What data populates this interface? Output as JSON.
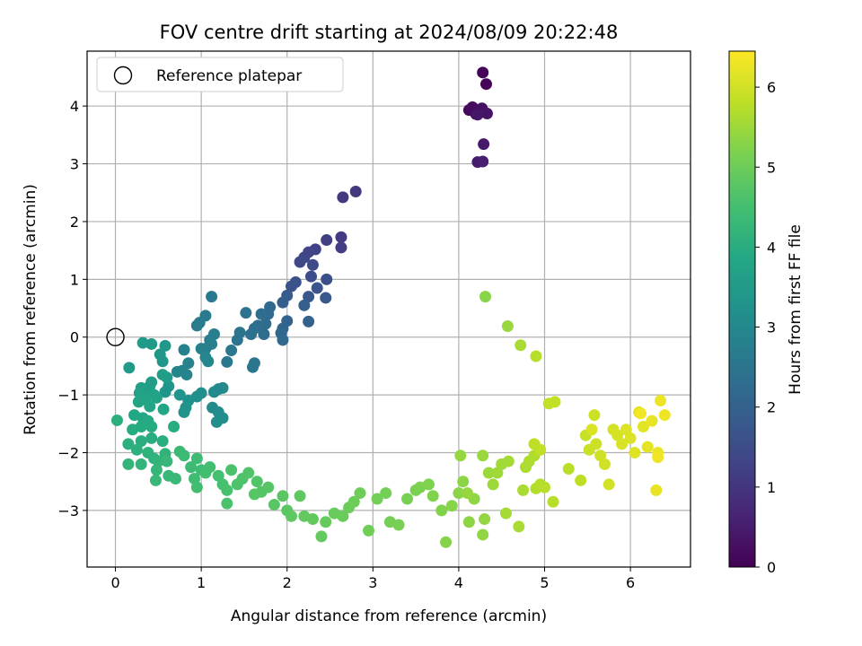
{
  "chart_data": {
    "type": "scatter",
    "title": "FOV centre drift starting at 2024/08/09 20:22:48",
    "xlabel": "Angular distance from reference (arcmin)",
    "ylabel": "Rotation from reference (arcmin)",
    "xlim": [
      -0.33,
      6.7
    ],
    "ylim": [
      -3.98,
      4.95
    ],
    "xticks": [
      0,
      1,
      2,
      3,
      4,
      5,
      6
    ],
    "yticks": [
      -3,
      -2,
      -1,
      0,
      1,
      2,
      3,
      4
    ],
    "grid": true,
    "legend": {
      "placement": "upper-left",
      "entries": [
        {
          "label": "Reference platepar",
          "marker": "hollow-circle"
        }
      ]
    },
    "reference_point": {
      "x": 0,
      "y": 0
    },
    "colorbar": {
      "label": "Hours from first FF file",
      "colormap": "viridis",
      "range": [
        0,
        6.45
      ],
      "ticks": [
        0,
        1,
        2,
        3,
        4,
        5,
        6
      ]
    },
    "points": [
      [
        4.28,
        4.58,
        0.05
      ],
      [
        4.32,
        4.38,
        0.1
      ],
      [
        4.12,
        3.93,
        0.15
      ],
      [
        4.16,
        3.98,
        0.2
      ],
      [
        4.2,
        3.86,
        0.25
      ],
      [
        4.27,
        3.96,
        0.3
      ],
      [
        4.33,
        3.87,
        0.35
      ],
      [
        4.22,
        3.85,
        0.4
      ],
      [
        4.29,
        3.34,
        0.45
      ],
      [
        4.22,
        3.03,
        0.5
      ],
      [
        4.28,
        3.04,
        0.55
      ],
      [
        2.8,
        2.52,
        1.0
      ],
      [
        2.65,
        2.42,
        1.05
      ],
      [
        2.63,
        1.73,
        1.1
      ],
      [
        2.63,
        1.55,
        1.15
      ],
      [
        2.46,
        1.68,
        1.2
      ],
      [
        2.33,
        1.52,
        1.25
      ],
      [
        2.25,
        1.47,
        1.3
      ],
      [
        2.2,
        1.38,
        1.35
      ],
      [
        2.15,
        1.3,
        1.4
      ],
      [
        2.3,
        1.25,
        1.45
      ],
      [
        2.28,
        1.05,
        1.5
      ],
      [
        2.46,
        1.0,
        1.55
      ],
      [
        2.1,
        0.95,
        1.6
      ],
      [
        2.05,
        0.88,
        1.65
      ],
      [
        2.35,
        0.85,
        1.7
      ],
      [
        2.25,
        0.7,
        1.75
      ],
      [
        2.45,
        0.68,
        1.8
      ],
      [
        2.0,
        0.72,
        1.85
      ],
      [
        1.95,
        0.6,
        1.9
      ],
      [
        2.2,
        0.55,
        1.95
      ],
      [
        2.25,
        0.27,
        2.0
      ],
      [
        2.0,
        0.28,
        2.05
      ],
      [
        1.95,
        0.15,
        2.1
      ],
      [
        1.93,
        0.07,
        2.15
      ],
      [
        1.95,
        -0.05,
        2.2
      ],
      [
        1.8,
        0.52,
        2.22
      ],
      [
        1.78,
        0.4,
        2.25
      ],
      [
        1.75,
        0.23,
        2.27
      ],
      [
        1.73,
        0.05,
        2.3
      ],
      [
        1.7,
        0.4,
        2.32
      ],
      [
        1.66,
        0.2,
        2.35
      ],
      [
        1.62,
        0.15,
        2.37
      ],
      [
        1.58,
        0.05,
        2.4
      ],
      [
        1.52,
        0.42,
        2.42
      ],
      [
        1.45,
        0.08,
        2.45
      ],
      [
        1.42,
        -0.05,
        2.47
      ],
      [
        1.62,
        -0.45,
        2.5
      ],
      [
        1.6,
        -0.52,
        2.52
      ],
      [
        1.35,
        -0.23,
        2.55
      ],
      [
        1.3,
        -0.43,
        2.57
      ],
      [
        1.12,
        0.7,
        2.6
      ],
      [
        1.05,
        0.37,
        2.62
      ],
      [
        0.98,
        0.25,
        2.65
      ],
      [
        0.95,
        0.2,
        2.67
      ],
      [
        1.15,
        0.05,
        2.7
      ],
      [
        1.1,
        -0.05,
        2.72
      ],
      [
        1.12,
        -0.12,
        2.75
      ],
      [
        1.05,
        -0.2,
        2.77
      ],
      [
        1.0,
        -0.2,
        2.8
      ],
      [
        0.8,
        -0.22,
        2.82
      ],
      [
        0.85,
        -0.45,
        2.85
      ],
      [
        0.78,
        -0.58,
        2.87
      ],
      [
        0.83,
        -0.65,
        2.9
      ],
      [
        0.72,
        -0.6,
        2.92
      ],
      [
        1.05,
        -0.35,
        2.95
      ],
      [
        1.08,
        -0.42,
        2.97
      ],
      [
        1.2,
        -0.9,
        3.0
      ],
      [
        1.25,
        -0.88,
        3.02
      ],
      [
        1.15,
        -0.95,
        3.05
      ],
      [
        1.13,
        -1.22,
        3.07
      ],
      [
        1.2,
        -1.3,
        3.1
      ],
      [
        1.25,
        -1.4,
        3.12
      ],
      [
        1.18,
        -1.47,
        3.15
      ],
      [
        1.0,
        -0.97,
        3.17
      ],
      [
        0.95,
        -1.03,
        3.2
      ],
      [
        0.85,
        -1.1,
        3.22
      ],
      [
        0.82,
        -1.22,
        3.25
      ],
      [
        0.8,
        -1.3,
        3.27
      ],
      [
        0.75,
        -1.0,
        3.3
      ],
      [
        0.62,
        -0.85,
        3.32
      ],
      [
        0.58,
        -0.95,
        3.35
      ],
      [
        0.55,
        -0.42,
        3.37
      ],
      [
        0.52,
        -0.3,
        3.4
      ],
      [
        0.58,
        -0.15,
        3.42
      ],
      [
        0.42,
        -0.12,
        3.45
      ],
      [
        0.32,
        -0.1,
        3.47
      ],
      [
        0.16,
        -0.53,
        3.5
      ],
      [
        0.6,
        -0.7,
        3.52
      ],
      [
        0.55,
        -0.65,
        3.55
      ],
      [
        0.42,
        -0.78,
        3.57
      ],
      [
        0.4,
        -0.85,
        3.6
      ],
      [
        0.3,
        -0.88,
        3.62
      ],
      [
        0.35,
        -0.93,
        3.65
      ],
      [
        0.28,
        -0.97,
        3.67
      ],
      [
        0.45,
        -1.0,
        3.7
      ],
      [
        0.48,
        -1.05,
        3.72
      ],
      [
        0.35,
        -1.08,
        3.75
      ],
      [
        0.27,
        -1.12,
        3.77
      ],
      [
        0.4,
        -1.2,
        3.8
      ],
      [
        0.56,
        -1.25,
        3.82
      ],
      [
        0.22,
        -1.35,
        3.85
      ],
      [
        0.32,
        -1.4,
        3.87
      ],
      [
        0.38,
        -1.45,
        3.9
      ],
      [
        0.42,
        -1.55,
        3.92
      ],
      [
        0.3,
        -1.55,
        3.94
      ],
      [
        0.2,
        -1.6,
        3.96
      ],
      [
        0.68,
        -1.55,
        3.98
      ],
      [
        0.42,
        -1.75,
        4.0
      ],
      [
        0.55,
        -1.8,
        4.02
      ],
      [
        0.3,
        -1.8,
        4.04
      ],
      [
        0.15,
        -1.85,
        4.06
      ],
      [
        0.02,
        -1.44,
        4.08
      ],
      [
        0.25,
        -1.95,
        4.1
      ],
      [
        0.38,
        -2.0,
        4.12
      ],
      [
        0.45,
        -2.1,
        4.14
      ],
      [
        0.58,
        -2.02,
        4.16
      ],
      [
        0.5,
        -2.15,
        4.18
      ],
      [
        0.3,
        -2.2,
        4.2
      ],
      [
        0.15,
        -2.2,
        4.22
      ],
      [
        0.48,
        -2.3,
        4.24
      ],
      [
        0.6,
        -2.15,
        4.26
      ],
      [
        0.47,
        -2.48,
        4.28
      ],
      [
        0.62,
        -2.4,
        4.3
      ],
      [
        0.7,
        -2.45,
        4.32
      ],
      [
        0.75,
        -1.98,
        4.34
      ],
      [
        0.8,
        -2.05,
        4.36
      ],
      [
        0.88,
        -2.25,
        4.38
      ],
      [
        0.95,
        -2.1,
        4.4
      ],
      [
        1.0,
        -2.3,
        4.42
      ],
      [
        0.92,
        -2.45,
        4.44
      ],
      [
        0.95,
        -2.6,
        4.46
      ],
      [
        1.05,
        -2.35,
        4.48
      ],
      [
        1.1,
        -2.25,
        4.5
      ],
      [
        1.2,
        -2.4,
        4.52
      ],
      [
        1.25,
        -2.55,
        4.54
      ],
      [
        1.3,
        -2.65,
        4.56
      ],
      [
        1.3,
        -2.88,
        4.58
      ],
      [
        1.35,
        -2.3,
        4.6
      ],
      [
        1.42,
        -2.55,
        4.62
      ],
      [
        1.48,
        -2.45,
        4.64
      ],
      [
        1.55,
        -2.35,
        4.66
      ],
      [
        1.65,
        -2.5,
        4.68
      ],
      [
        1.7,
        -2.68,
        4.7
      ],
      [
        1.62,
        -2.72,
        4.72
      ],
      [
        1.78,
        -2.6,
        4.74
      ],
      [
        1.85,
        -2.9,
        4.76
      ],
      [
        1.95,
        -2.75,
        4.78
      ],
      [
        2.0,
        -3.0,
        4.8
      ],
      [
        2.05,
        -3.1,
        4.82
      ],
      [
        2.15,
        -2.75,
        4.84
      ],
      [
        2.2,
        -3.1,
        4.86
      ],
      [
        2.3,
        -3.15,
        4.88
      ],
      [
        2.4,
        -3.45,
        4.9
      ],
      [
        2.45,
        -3.2,
        4.92
      ],
      [
        2.55,
        -3.05,
        4.94
      ],
      [
        2.65,
        -3.1,
        4.96
      ],
      [
        2.72,
        -2.95,
        4.98
      ],
      [
        2.78,
        -2.85,
        5.0
      ],
      [
        2.85,
        -2.7,
        5.02
      ],
      [
        2.95,
        -3.35,
        5.04
      ],
      [
        3.05,
        -2.8,
        5.06
      ],
      [
        3.15,
        -2.7,
        5.08
      ],
      [
        3.2,
        -3.2,
        5.1
      ],
      [
        3.3,
        -3.25,
        5.12
      ],
      [
        3.4,
        -2.8,
        5.14
      ],
      [
        3.5,
        -2.65,
        5.16
      ],
      [
        3.55,
        -2.6,
        5.18
      ],
      [
        3.65,
        -2.55,
        5.2
      ],
      [
        3.7,
        -2.75,
        5.22
      ],
      [
        3.8,
        -3.0,
        5.24
      ],
      [
        3.85,
        -3.55,
        5.26
      ],
      [
        3.92,
        -2.92,
        5.28
      ],
      [
        4.0,
        -2.7,
        5.3
      ],
      [
        4.05,
        -2.5,
        5.32
      ],
      [
        4.12,
        -3.2,
        5.34
      ],
      [
        4.18,
        -2.8,
        5.36
      ],
      [
        4.28,
        -3.42,
        5.38
      ],
      [
        4.3,
        -3.15,
        5.4
      ],
      [
        4.02,
        -2.05,
        5.42
      ],
      [
        4.1,
        -2.7,
        5.44
      ],
      [
        4.28,
        -2.05,
        5.46
      ],
      [
        4.35,
        -2.35,
        5.48
      ],
      [
        4.4,
        -2.55,
        5.5
      ],
      [
        4.45,
        -2.35,
        5.52
      ],
      [
        4.5,
        -2.2,
        5.54
      ],
      [
        4.58,
        -2.15,
        5.56
      ],
      [
        4.55,
        -3.05,
        5.58
      ],
      [
        4.7,
        -3.28,
        5.6
      ],
      [
        4.75,
        -2.65,
        5.62
      ],
      [
        4.78,
        -2.25,
        5.64
      ],
      [
        4.82,
        -2.15,
        5.66
      ],
      [
        4.88,
        -2.05,
        5.68
      ],
      [
        4.9,
        -2.62,
        5.7
      ],
      [
        4.95,
        -2.55,
        5.72
      ],
      [
        5.0,
        -2.6,
        5.74
      ],
      [
        5.1,
        -2.85,
        5.76
      ],
      [
        5.28,
        -2.28,
        5.78
      ],
      [
        5.42,
        -2.48,
        5.8
      ],
      [
        4.88,
        -1.85,
        5.82
      ],
      [
        4.95,
        -1.95,
        5.84
      ],
      [
        5.05,
        -1.15,
        5.86
      ],
      [
        5.12,
        -1.12,
        5.88
      ],
      [
        4.31,
        0.7,
        5.3
      ],
      [
        4.57,
        0.19,
        5.45
      ],
      [
        4.72,
        -0.14,
        5.6
      ],
      [
        4.9,
        -0.33,
        5.75
      ],
      [
        5.48,
        -1.7,
        5.9
      ],
      [
        5.52,
        -1.95,
        5.92
      ],
      [
        5.58,
        -1.35,
        5.94
      ],
      [
        5.6,
        -1.85,
        5.96
      ],
      [
        5.65,
        -2.05,
        5.98
      ],
      [
        5.7,
        -2.2,
        6.0
      ],
      [
        5.75,
        -2.55,
        6.02
      ],
      [
        5.8,
        -1.6,
        6.04
      ],
      [
        5.85,
        -1.7,
        6.06
      ],
      [
        5.9,
        -1.85,
        6.08
      ],
      [
        5.95,
        -1.6,
        6.1
      ],
      [
        6.0,
        -1.75,
        6.12
      ],
      [
        6.05,
        -2.0,
        6.14
      ],
      [
        6.1,
        -1.3,
        6.16
      ],
      [
        6.15,
        -1.55,
        6.18
      ],
      [
        6.2,
        -1.9,
        6.2
      ],
      [
        6.25,
        -1.45,
        6.22
      ],
      [
        6.3,
        -2.65,
        6.24
      ],
      [
        6.32,
        -2.0,
        6.26
      ],
      [
        6.35,
        -1.1,
        6.28
      ],
      [
        6.4,
        -1.35,
        6.3
      ],
      [
        6.32,
        -2.08,
        6.32
      ],
      [
        6.12,
        -1.32,
        6.34
      ],
      [
        5.55,
        -1.6,
        6.1
      ]
    ]
  }
}
